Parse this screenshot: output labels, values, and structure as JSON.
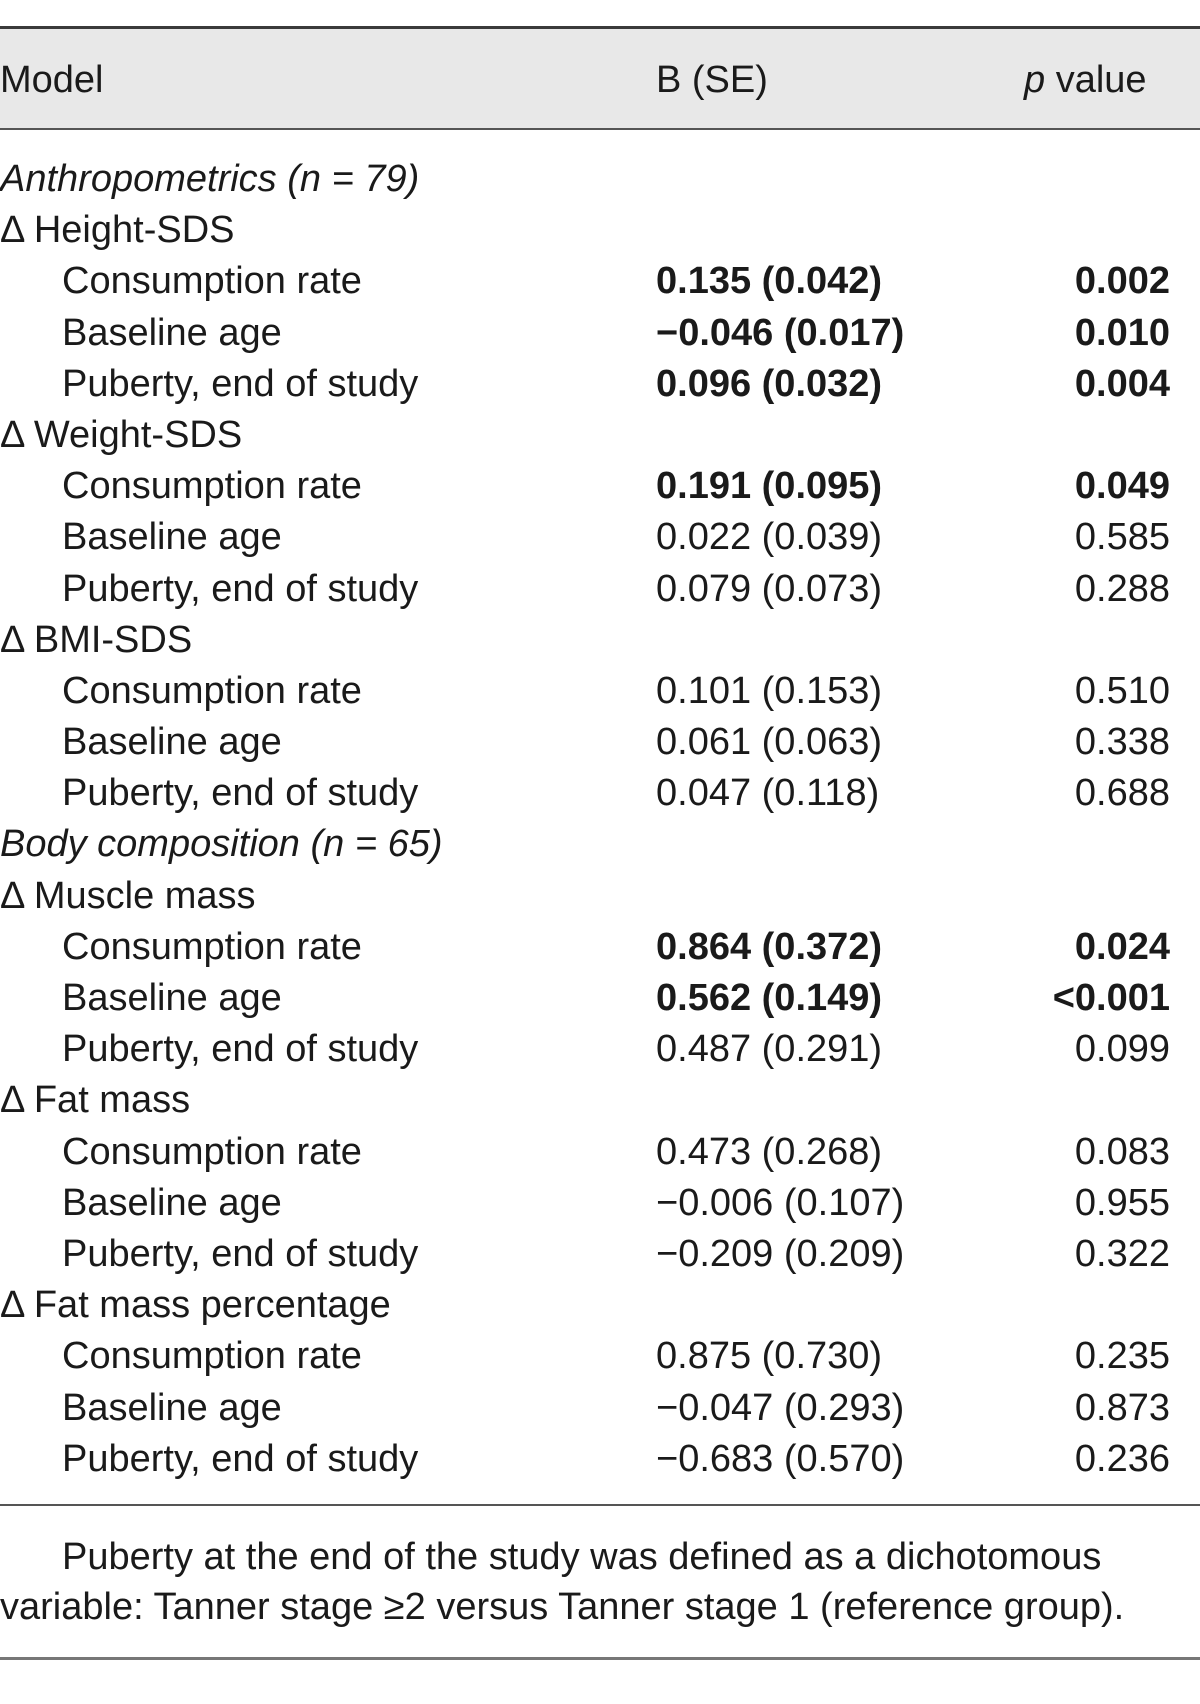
{
  "header": {
    "model": "Model",
    "b_se": "B (SE)",
    "p_italic": "p",
    "p_rest": " value"
  },
  "rows": [
    {
      "type": "section",
      "label": "Anthropometrics (n = 79)"
    },
    {
      "type": "group",
      "label": "Δ Height-SDS"
    },
    {
      "type": "item",
      "label": "Consumption rate",
      "b_se": "0.135 (0.042)",
      "p": "0.002",
      "bold": true
    },
    {
      "type": "item",
      "label": "Baseline age",
      "b_se": "−0.046 (0.017)",
      "p": "0.010",
      "bold": true
    },
    {
      "type": "item",
      "label": "Puberty, end of study",
      "b_se": "0.096 (0.032)",
      "p": "0.004",
      "bold": true
    },
    {
      "type": "group",
      "label": "Δ Weight-SDS"
    },
    {
      "type": "item",
      "label": "Consumption rate",
      "b_se": "0.191 (0.095)",
      "p": "0.049",
      "bold": true
    },
    {
      "type": "item",
      "label": "Baseline age",
      "b_se": "0.022 (0.039)",
      "p": "0.585",
      "bold": false
    },
    {
      "type": "item",
      "label": "Puberty, end of study",
      "b_se": "0.079 (0.073)",
      "p": "0.288",
      "bold": false
    },
    {
      "type": "group",
      "label": "Δ BMI-SDS"
    },
    {
      "type": "item",
      "label": "Consumption rate",
      "b_se": "0.101 (0.153)",
      "p": "0.510",
      "bold": false
    },
    {
      "type": "item",
      "label": "Baseline age",
      "b_se": "0.061 (0.063)",
      "p": "0.338",
      "bold": false
    },
    {
      "type": "item",
      "label": "Puberty, end of study",
      "b_se": "0.047 (0.118)",
      "p": "0.688",
      "bold": false
    },
    {
      "type": "section",
      "label": "Body composition (n = 65)"
    },
    {
      "type": "group",
      "label": "Δ Muscle mass"
    },
    {
      "type": "item",
      "label": "Consumption rate",
      "b_se": "0.864 (0.372)",
      "p": "0.024",
      "bold": true
    },
    {
      "type": "item",
      "label": "Baseline age",
      "b_se": "0.562 (0.149)",
      "p": "<0.001",
      "bold": true
    },
    {
      "type": "item",
      "label": "Puberty, end of study",
      "b_se": "0.487 (0.291)",
      "p": "0.099",
      "bold": false
    },
    {
      "type": "group",
      "label": "Δ Fat mass"
    },
    {
      "type": "item",
      "label": "Consumption rate",
      "b_se": "0.473 (0.268)",
      "p": "0.083",
      "bold": false
    },
    {
      "type": "item",
      "label": "Baseline age",
      "b_se": "−0.006 (0.107)",
      "p": "0.955",
      "bold": false
    },
    {
      "type": "item",
      "label": "Puberty, end of study",
      "b_se": "−0.209 (0.209)",
      "p": "0.322",
      "bold": false
    },
    {
      "type": "group",
      "label": "Δ Fat mass percentage"
    },
    {
      "type": "item",
      "label": "Consumption rate",
      "b_se": "0.875 (0.730)",
      "p": "0.235",
      "bold": false
    },
    {
      "type": "item",
      "label": "Baseline age",
      "b_se": "−0.047 (0.293)",
      "p": "0.873",
      "bold": false
    },
    {
      "type": "item",
      "label": "Puberty, end of study",
      "b_se": "−0.683 (0.570)",
      "p": "0.236",
      "bold": false
    }
  ],
  "footnote": {
    "line1": "Puberty at the end of the study was defined as a dichotomous",
    "line2": "variable: Tanner stage ≥2 versus Tanner stage 1 (reference group)."
  }
}
